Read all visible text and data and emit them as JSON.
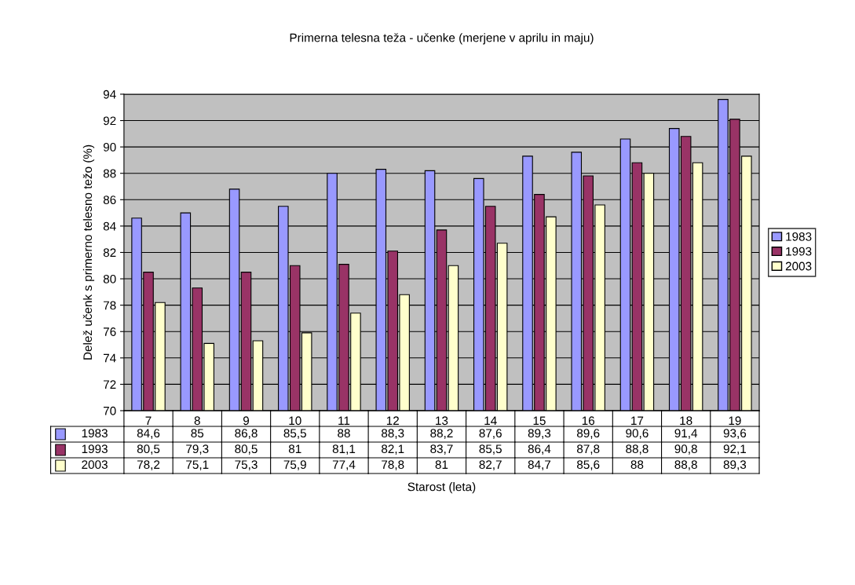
{
  "chart_data": {
    "type": "bar",
    "title": "Primerna telesna teža - učenke (merjene v aprilu in maju)",
    "xlabel": "Starost (leta)",
    "ylabel": "Delež učenk s primerno telesno težo (%)",
    "categories": [
      "7",
      "8",
      "9",
      "10",
      "11",
      "12",
      "13",
      "14",
      "15",
      "16",
      "17",
      "18",
      "19"
    ],
    "series": [
      {
        "name": "1983",
        "color": "#9999ff",
        "values": [
          84.6,
          85,
          86.8,
          85.5,
          88,
          88.3,
          88.2,
          87.6,
          89.3,
          89.6,
          90.6,
          91.4,
          93.6
        ],
        "value_labels": [
          "84,6",
          "85",
          "86,8",
          "85,5",
          "88",
          "88,3",
          "88,2",
          "87,6",
          "89,3",
          "89,6",
          "90,6",
          "91,4",
          "93,6"
        ]
      },
      {
        "name": "1993",
        "color": "#993366",
        "values": [
          80.5,
          79.3,
          80.5,
          81,
          81.1,
          82.1,
          83.7,
          85.5,
          86.4,
          87.8,
          88.8,
          90.8,
          92.1
        ],
        "value_labels": [
          "80,5",
          "79,3",
          "80,5",
          "81",
          "81,1",
          "82,1",
          "83,7",
          "85,5",
          "86,4",
          "87,8",
          "88,8",
          "90,8",
          "92,1"
        ]
      },
      {
        "name": "2003",
        "color": "#ffffcc",
        "values": [
          78.2,
          75.1,
          75.3,
          75.9,
          77.4,
          78.8,
          81,
          82.7,
          84.7,
          85.6,
          88,
          88.8,
          89.3
        ],
        "value_labels": [
          "78,2",
          "75,1",
          "75,3",
          "75,9",
          "77,4",
          "78,8",
          "81",
          "82,7",
          "84,7",
          "85,6",
          "88",
          "88,8",
          "89,3"
        ]
      }
    ],
    "ylim": [
      70,
      94
    ],
    "yticks": [
      70,
      72,
      74,
      76,
      78,
      80,
      82,
      84,
      86,
      88,
      90,
      92,
      94
    ],
    "grid": "y",
    "legend": "right"
  }
}
